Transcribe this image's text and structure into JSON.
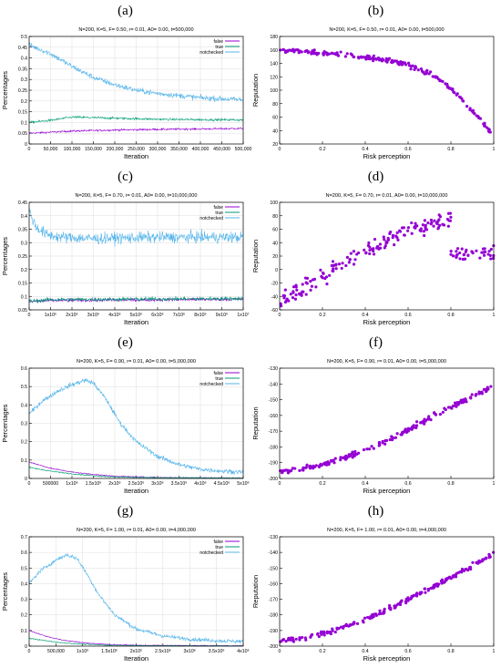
{
  "colors": {
    "false": "#9400d3",
    "true": "#009e73",
    "notchecked": "#56b4e9",
    "scatter": "#9400d3",
    "grid": "#dddddd"
  },
  "panels": [
    {
      "letter": "(a)",
      "chart_data": {
        "type": "line",
        "title": "N=200, K=5, F= 0.50, r= 0.01, A0= 0.00, t=500,000",
        "xlabel": "Iteration",
        "ylabel": "Percentages",
        "xlim": [
          0,
          500000
        ],
        "ylim": [
          0,
          0.5
        ],
        "xticks": [
          0,
          50000,
          100000,
          150000,
          200000,
          250000,
          300000,
          350000,
          400000,
          450000,
          500000
        ],
        "xtick_labels": [
          "0",
          "50,000",
          "100,000",
          "150,000",
          "200,000",
          "250,000",
          "300,000",
          "350,000",
          "400,000",
          "450,000",
          "500,000"
        ],
        "yticks": [
          0,
          0.05,
          0.1,
          0.15,
          0.2,
          0.25,
          0.3,
          0.35,
          0.4,
          0.45,
          0.5
        ],
        "ytick_labels": [
          "0",
          "0.05",
          "0.1",
          "0.15",
          "0.2",
          "0.25",
          "0.3",
          "0.35",
          "0.4",
          "0.45",
          "0.5"
        ],
        "grid": true,
        "legend": "top-right",
        "series": [
          {
            "name": "false",
            "color_key": "false",
            "noise": 0.004,
            "x": [
              0,
              100000,
              200000,
              300000,
              400000,
              500000
            ],
            "y": [
              0.05,
              0.06,
              0.065,
              0.068,
              0.07,
              0.072
            ]
          },
          {
            "name": "true",
            "color_key": "true",
            "noise": 0.005,
            "x": [
              0,
              50000,
              100000,
              200000,
              300000,
              400000,
              500000
            ],
            "y": [
              0.1,
              0.11,
              0.125,
              0.12,
              0.115,
              0.113,
              0.112
            ]
          },
          {
            "name": "notchecked",
            "color_key": "notchecked",
            "noise": 0.012,
            "x": [
              0,
              50000,
              100000,
              150000,
              200000,
              250000,
              300000,
              350000,
              400000,
              450000,
              500000
            ],
            "y": [
              0.46,
              0.42,
              0.36,
              0.31,
              0.275,
              0.25,
              0.235,
              0.225,
              0.215,
              0.21,
              0.205
            ]
          }
        ]
      }
    },
    {
      "letter": "(b)",
      "chart_data": {
        "type": "scatter",
        "title": "N=200, K=5, F= 0.50, r= 0.01, A0= 0.00, t=500,000",
        "xlabel": "Risk perception",
        "ylabel": "Reputation",
        "xlim": [
          0,
          1
        ],
        "ylim": [
          20,
          180
        ],
        "xticks": [
          0,
          0.2,
          0.4,
          0.6,
          0.8,
          1
        ],
        "xtick_labels": [
          "0",
          "0.2",
          "0.4",
          "0.6",
          "0.8",
          "1"
        ],
        "yticks": [
          20,
          40,
          60,
          80,
          100,
          120,
          140,
          160,
          180
        ],
        "ytick_labels": [
          "20",
          "40",
          "60",
          "80",
          "100",
          "120",
          "140",
          "160",
          "180"
        ],
        "grid": false,
        "n_points": 200,
        "spread": 3,
        "trend_x": [
          0,
          0.1,
          0.2,
          0.3,
          0.4,
          0.5,
          0.6,
          0.7,
          0.75,
          0.8,
          0.85,
          0.9,
          0.95,
          1.0
        ],
        "trend_y": [
          160,
          158,
          156,
          153,
          149,
          145,
          138,
          125,
          115,
          102,
          88,
          70,
          52,
          33
        ]
      }
    },
    {
      "letter": "(c)",
      "chart_data": {
        "type": "line",
        "title": "N=200, K=5, F= 0.70, r= 0.01, A0= 0.00, t=10,000,000",
        "xlabel": "Iteration",
        "ylabel": "Percentages",
        "xlim": [
          0,
          10000000
        ],
        "ylim": [
          0.05,
          0.45
        ],
        "xticks": [
          0,
          1000000,
          2000000,
          3000000,
          4000000,
          5000000,
          6000000,
          7000000,
          8000000,
          9000000,
          10000000
        ],
        "xtick_labels": [
          "0",
          "1x10⁶",
          "2x10⁶",
          "3x10⁶",
          "4x10⁶",
          "5x10⁶",
          "6x10⁶",
          "7x10⁶",
          "8x10⁶",
          "9x10⁶",
          "1x10⁷"
        ],
        "yticks": [
          0.05,
          0.1,
          0.15,
          0.2,
          0.25,
          0.3,
          0.35,
          0.4,
          0.45
        ],
        "ytick_labels": [
          "0.05",
          "0.1",
          "0.15",
          "0.2",
          "0.25",
          "0.3",
          "0.35",
          "0.4",
          "0.45"
        ],
        "grid": true,
        "legend": "top-right",
        "series": [
          {
            "name": "false",
            "color_key": "false",
            "noise": 0.006,
            "x": [
              0,
              1000000,
              10000000
            ],
            "y": [
              0.08,
              0.085,
              0.09
            ]
          },
          {
            "name": "true",
            "color_key": "true",
            "noise": 0.007,
            "x": [
              0,
              1000000,
              10000000
            ],
            "y": [
              0.082,
              0.088,
              0.092
            ]
          },
          {
            "name": "notchecked",
            "color_key": "notchecked",
            "noise": 0.02,
            "x": [
              0,
              300000,
              800000,
              1500000,
              3000000,
              6000000,
              10000000
            ],
            "y": [
              0.42,
              0.36,
              0.33,
              0.32,
              0.315,
              0.32,
              0.32
            ]
          }
        ]
      }
    },
    {
      "letter": "(d)",
      "chart_data": {
        "type": "scatter",
        "title": "N=200, K=5, F= 0.70, r= 0.01, A0= 0.00, t=10,000,000",
        "xlabel": "Risk perception",
        "ylabel": "Reputation",
        "xlim": [
          0,
          1
        ],
        "ylim": [
          -60,
          100
        ],
        "xticks": [
          0,
          0.2,
          0.4,
          0.6,
          0.8,
          1
        ],
        "xtick_labels": [
          "0",
          "0.2",
          "0.4",
          "0.6",
          "0.8",
          "1"
        ],
        "yticks": [
          -60,
          -40,
          -20,
          0,
          20,
          40,
          60,
          80,
          100
        ],
        "ytick_labels": [
          "-60",
          "-40",
          "-20",
          "0",
          "20",
          "40",
          "60",
          "80",
          "100"
        ],
        "grid": false,
        "n_points": 200,
        "spread": 12,
        "trend_x": [
          0,
          0.1,
          0.2,
          0.3,
          0.4,
          0.5,
          0.6,
          0.7,
          0.8,
          0.8001,
          0.9,
          1.0
        ],
        "trend_y": [
          -45,
          -30,
          -10,
          10,
          30,
          45,
          60,
          65,
          75,
          20,
          25,
          22
        ]
      }
    },
    {
      "letter": "(e)",
      "chart_data": {
        "type": "line",
        "title": "N=200, K=5, F= 0.90, r= 0.01, A0= 0.00, t=5,000,000",
        "xlabel": "Iteration",
        "ylabel": "Percentages",
        "xlim": [
          0,
          5000000
        ],
        "ylim": [
          0,
          0.6
        ],
        "xticks": [
          0,
          500000,
          1000000,
          1500000,
          2000000,
          2500000,
          3000000,
          3500000,
          4000000,
          4500000,
          5000000
        ],
        "xtick_labels": [
          "0",
          "500000",
          "1x10⁶",
          "1.5x10⁶",
          "2x10⁶",
          "2.5x10⁶",
          "3x10⁶",
          "3.5x10⁶",
          "4x10⁶",
          "4.5x10⁶",
          "5x10⁶"
        ],
        "yticks": [
          0,
          0.1,
          0.2,
          0.3,
          0.4,
          0.5,
          0.6
        ],
        "ytick_labels": [
          "0",
          "0.1",
          "0.2",
          "0.3",
          "0.4",
          "0.5",
          "0.6"
        ],
        "grid": true,
        "legend": "top-right",
        "series": [
          {
            "name": "false",
            "color_key": "false",
            "noise": 0.003,
            "x": [
              0,
              500000,
              1000000,
              1500000,
              2000000,
              3000000,
              5000000
            ],
            "y": [
              0.09,
              0.055,
              0.035,
              0.022,
              0.012,
              0.005,
              0.002
            ]
          },
          {
            "name": "true",
            "color_key": "true",
            "noise": 0.003,
            "x": [
              0,
              500000,
              1000000,
              1500000,
              2000000,
              3000000,
              5000000
            ],
            "y": [
              0.06,
              0.04,
              0.025,
              0.015,
              0.008,
              0.004,
              0.002
            ]
          },
          {
            "name": "notchecked",
            "color_key": "notchecked",
            "noise": 0.012,
            "x": [
              0,
              300000,
              700000,
              1000000,
              1300000,
              1500000,
              1800000,
              2100000,
              2500000,
              3000000,
              3500000,
              4000000,
              4500000,
              5000000
            ],
            "y": [
              0.35,
              0.42,
              0.48,
              0.51,
              0.535,
              0.52,
              0.43,
              0.31,
              0.2,
              0.12,
              0.075,
              0.05,
              0.04,
              0.035
            ]
          }
        ]
      }
    },
    {
      "letter": "(f)",
      "chart_data": {
        "type": "scatter",
        "title": "N=200, K=5, F= 0.90, r= 0.01, A0= 0.00, t=5,000,000",
        "xlabel": "Risk perception",
        "ylabel": "Reputation",
        "xlim": [
          0,
          1
        ],
        "ylim": [
          -200,
          -130
        ],
        "xticks": [
          0,
          0.2,
          0.4,
          0.6,
          0.8,
          1
        ],
        "xtick_labels": [
          "0",
          "0.2",
          "0.4",
          "0.6",
          "0.8",
          "1"
        ],
        "yticks": [
          -200,
          -190,
          -180,
          -170,
          -160,
          -150,
          -140,
          -130
        ],
        "ytick_labels": [
          "-200",
          "-190",
          "-180",
          "-170",
          "-160",
          "-150",
          "-140",
          "-130"
        ],
        "grid": false,
        "n_points": 200,
        "spread": 1.5,
        "trend_x": [
          0,
          0.1,
          0.2,
          0.3,
          0.4,
          0.5,
          0.6,
          0.7,
          0.8,
          0.9,
          1.0
        ],
        "trend_y": [
          -196,
          -194,
          -191,
          -187,
          -182,
          -176,
          -169,
          -162,
          -155,
          -148,
          -141
        ]
      }
    },
    {
      "letter": "(g)",
      "chart_data": {
        "type": "line",
        "title": "N=200, K=5, F= 1.00, r= 0.01, A0= 0.00, t=4,000,000",
        "xlabel": "Iteration",
        "ylabel": "Percentages",
        "xlim": [
          0,
          4000000
        ],
        "ylim": [
          0,
          0.7
        ],
        "xticks": [
          0,
          500000,
          1000000,
          1500000,
          2000000,
          2500000,
          3000000,
          3500000,
          4000000
        ],
        "xtick_labels": [
          "0",
          "500,000",
          "1x10⁶",
          "1.5x10⁶",
          "2x10⁶",
          "2.5x10⁶",
          "3x10⁶",
          "3.5x10⁶",
          "4x10⁶"
        ],
        "yticks": [
          0,
          0.1,
          0.2,
          0.3,
          0.4,
          0.5,
          0.6,
          0.7
        ],
        "ytick_labels": [
          "0",
          "0.1",
          "0.2",
          "0.3",
          "0.4",
          "0.5",
          "0.6",
          "0.7"
        ],
        "grid": true,
        "legend": "top-right",
        "series": [
          {
            "name": "false",
            "color_key": "false",
            "noise": 0.003,
            "x": [
              0,
              300000,
              600000,
              1000000,
              1500000,
              2000000,
              4000000
            ],
            "y": [
              0.1,
              0.065,
              0.04,
              0.022,
              0.01,
              0.005,
              0.002
            ]
          },
          {
            "name": "true",
            "color_key": "true",
            "noise": 0.003,
            "x": [
              0,
              300000,
              600000,
              1000000,
              1500000,
              2000000,
              4000000
            ],
            "y": [
              0.05,
              0.035,
              0.022,
              0.012,
              0.006,
              0.003,
              0.001
            ]
          },
          {
            "name": "notchecked",
            "color_key": "notchecked",
            "noise": 0.012,
            "x": [
              0,
              200000,
              500000,
              700000,
              900000,
              1100000,
              1300000,
              1600000,
              2000000,
              2500000,
              3000000,
              3500000,
              4000000
            ],
            "y": [
              0.4,
              0.48,
              0.55,
              0.585,
              0.56,
              0.45,
              0.33,
              0.2,
              0.11,
              0.065,
              0.045,
              0.035,
              0.03
            ]
          }
        ]
      }
    },
    {
      "letter": "(h)",
      "chart_data": {
        "type": "scatter",
        "title": "N=200, K=5, F= 1.00, r= 0.01, A0= 0.00, t=4,000,000",
        "xlabel": "Risk perception",
        "ylabel": "Reputation",
        "xlim": [
          0,
          1
        ],
        "ylim": [
          -200,
          -130
        ],
        "xticks": [
          0,
          0.2,
          0.4,
          0.6,
          0.8,
          1
        ],
        "xtick_labels": [
          "0",
          "0.2",
          "0.4",
          "0.6",
          "0.8",
          "1"
        ],
        "yticks": [
          -200,
          -190,
          -180,
          -170,
          -160,
          -150,
          -140,
          -130
        ],
        "ytick_labels": [
          "-200",
          "-190",
          "-180",
          "-170",
          "-160",
          "-150",
          "-140",
          "-130"
        ],
        "grid": false,
        "n_points": 200,
        "spread": 1.5,
        "trend_x": [
          0,
          0.1,
          0.2,
          0.3,
          0.4,
          0.5,
          0.6,
          0.7,
          0.8,
          0.9,
          1.0
        ],
        "trend_y": [
          -197,
          -195,
          -192,
          -188,
          -183,
          -177,
          -170,
          -163,
          -156,
          -149,
          -141
        ]
      }
    }
  ]
}
